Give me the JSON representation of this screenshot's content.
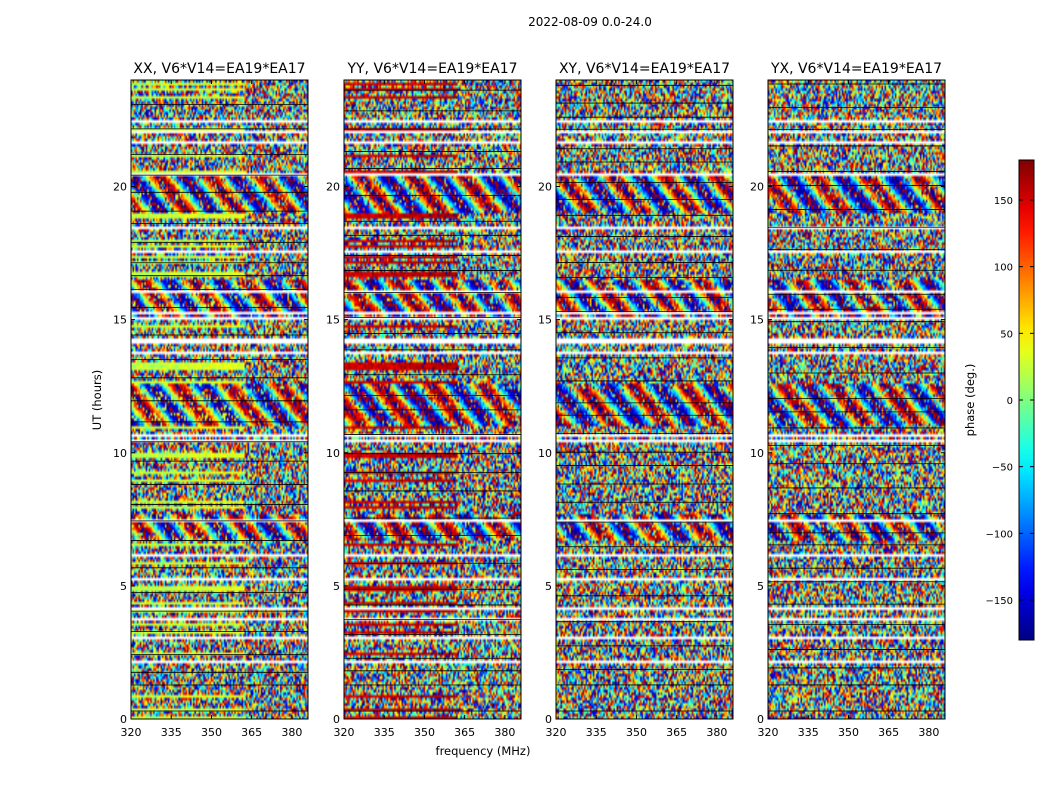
{
  "chart_data": {
    "type": "heatmap",
    "suptitle": "2022-08-09 0.0-24.0",
    "xlabel": "frequency (MHz)",
    "ylabel": "UT (hours)",
    "xlim": [
      320,
      386
    ],
    "ylim": [
      0,
      24
    ],
    "xticks": [
      "320",
      "335",
      "350",
      "365",
      "380"
    ],
    "yticks": [
      "0",
      "5",
      "10",
      "15",
      "20"
    ],
    "colorbar": {
      "label": "phase (deg.)",
      "range": [
        -180,
        180
      ],
      "ticks": [
        "−150",
        "−100",
        "−50",
        "0",
        "50",
        "100",
        "150"
      ],
      "colormap": "jet"
    },
    "panels": [
      {
        "title": "XX, V6*V14=EA19*EA17",
        "pol": "XX"
      },
      {
        "title": "YY, V6*V14=EA19*EA17",
        "pol": "YY"
      },
      {
        "title": "XY, V6*V14=EA19*EA17",
        "pol": "XY"
      },
      {
        "title": "YX, V6*V14=EA19*EA17",
        "pol": "YX"
      }
    ]
  }
}
